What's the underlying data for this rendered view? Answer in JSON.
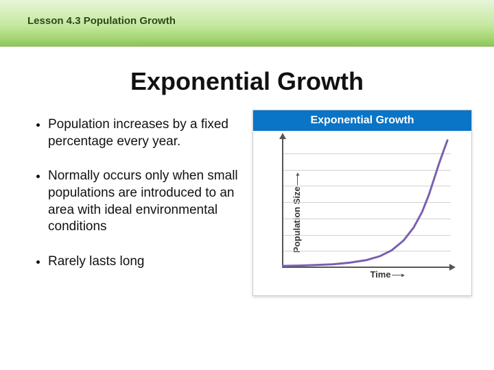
{
  "header": {
    "lesson_label": "Lesson 4.3 Population Growth"
  },
  "slide": {
    "title": "Exponential Growth",
    "bullets": [
      "Population increases by a fixed percentage every year.",
      "Normally occurs only when small populations are introduced to an area with ideal environmental conditions",
      "Rarely lasts long"
    ]
  },
  "chart": {
    "type": "line",
    "title": "Exponential Growth",
    "header_bg": "#0a74c7",
    "header_color": "#ffffff",
    "x_label": "Time",
    "y_label": "Population Size",
    "curve_color": "#7a5fb0",
    "curve_width": 3,
    "grid_color": "#d0d0d0",
    "axis_color": "#555555",
    "background_color": "#ffffff",
    "grid_lines": [
      0.125,
      0.25,
      0.375,
      0.5,
      0.625,
      0.75,
      0.875
    ],
    "curve_points": [
      [
        0.0,
        0.985
      ],
      [
        0.1,
        0.982
      ],
      [
        0.2,
        0.978
      ],
      [
        0.3,
        0.972
      ],
      [
        0.4,
        0.96
      ],
      [
        0.5,
        0.94
      ],
      [
        0.58,
        0.91
      ],
      [
        0.65,
        0.865
      ],
      [
        0.72,
        0.79
      ],
      [
        0.78,
        0.69
      ],
      [
        0.83,
        0.57
      ],
      [
        0.87,
        0.44
      ],
      [
        0.9,
        0.32
      ],
      [
        0.93,
        0.2
      ],
      [
        0.96,
        0.09
      ],
      [
        0.98,
        0.02
      ]
    ]
  },
  "colors": {
    "banner_top": "#e8f5d8",
    "banner_bottom": "#8cc85a",
    "text": "#111111"
  }
}
